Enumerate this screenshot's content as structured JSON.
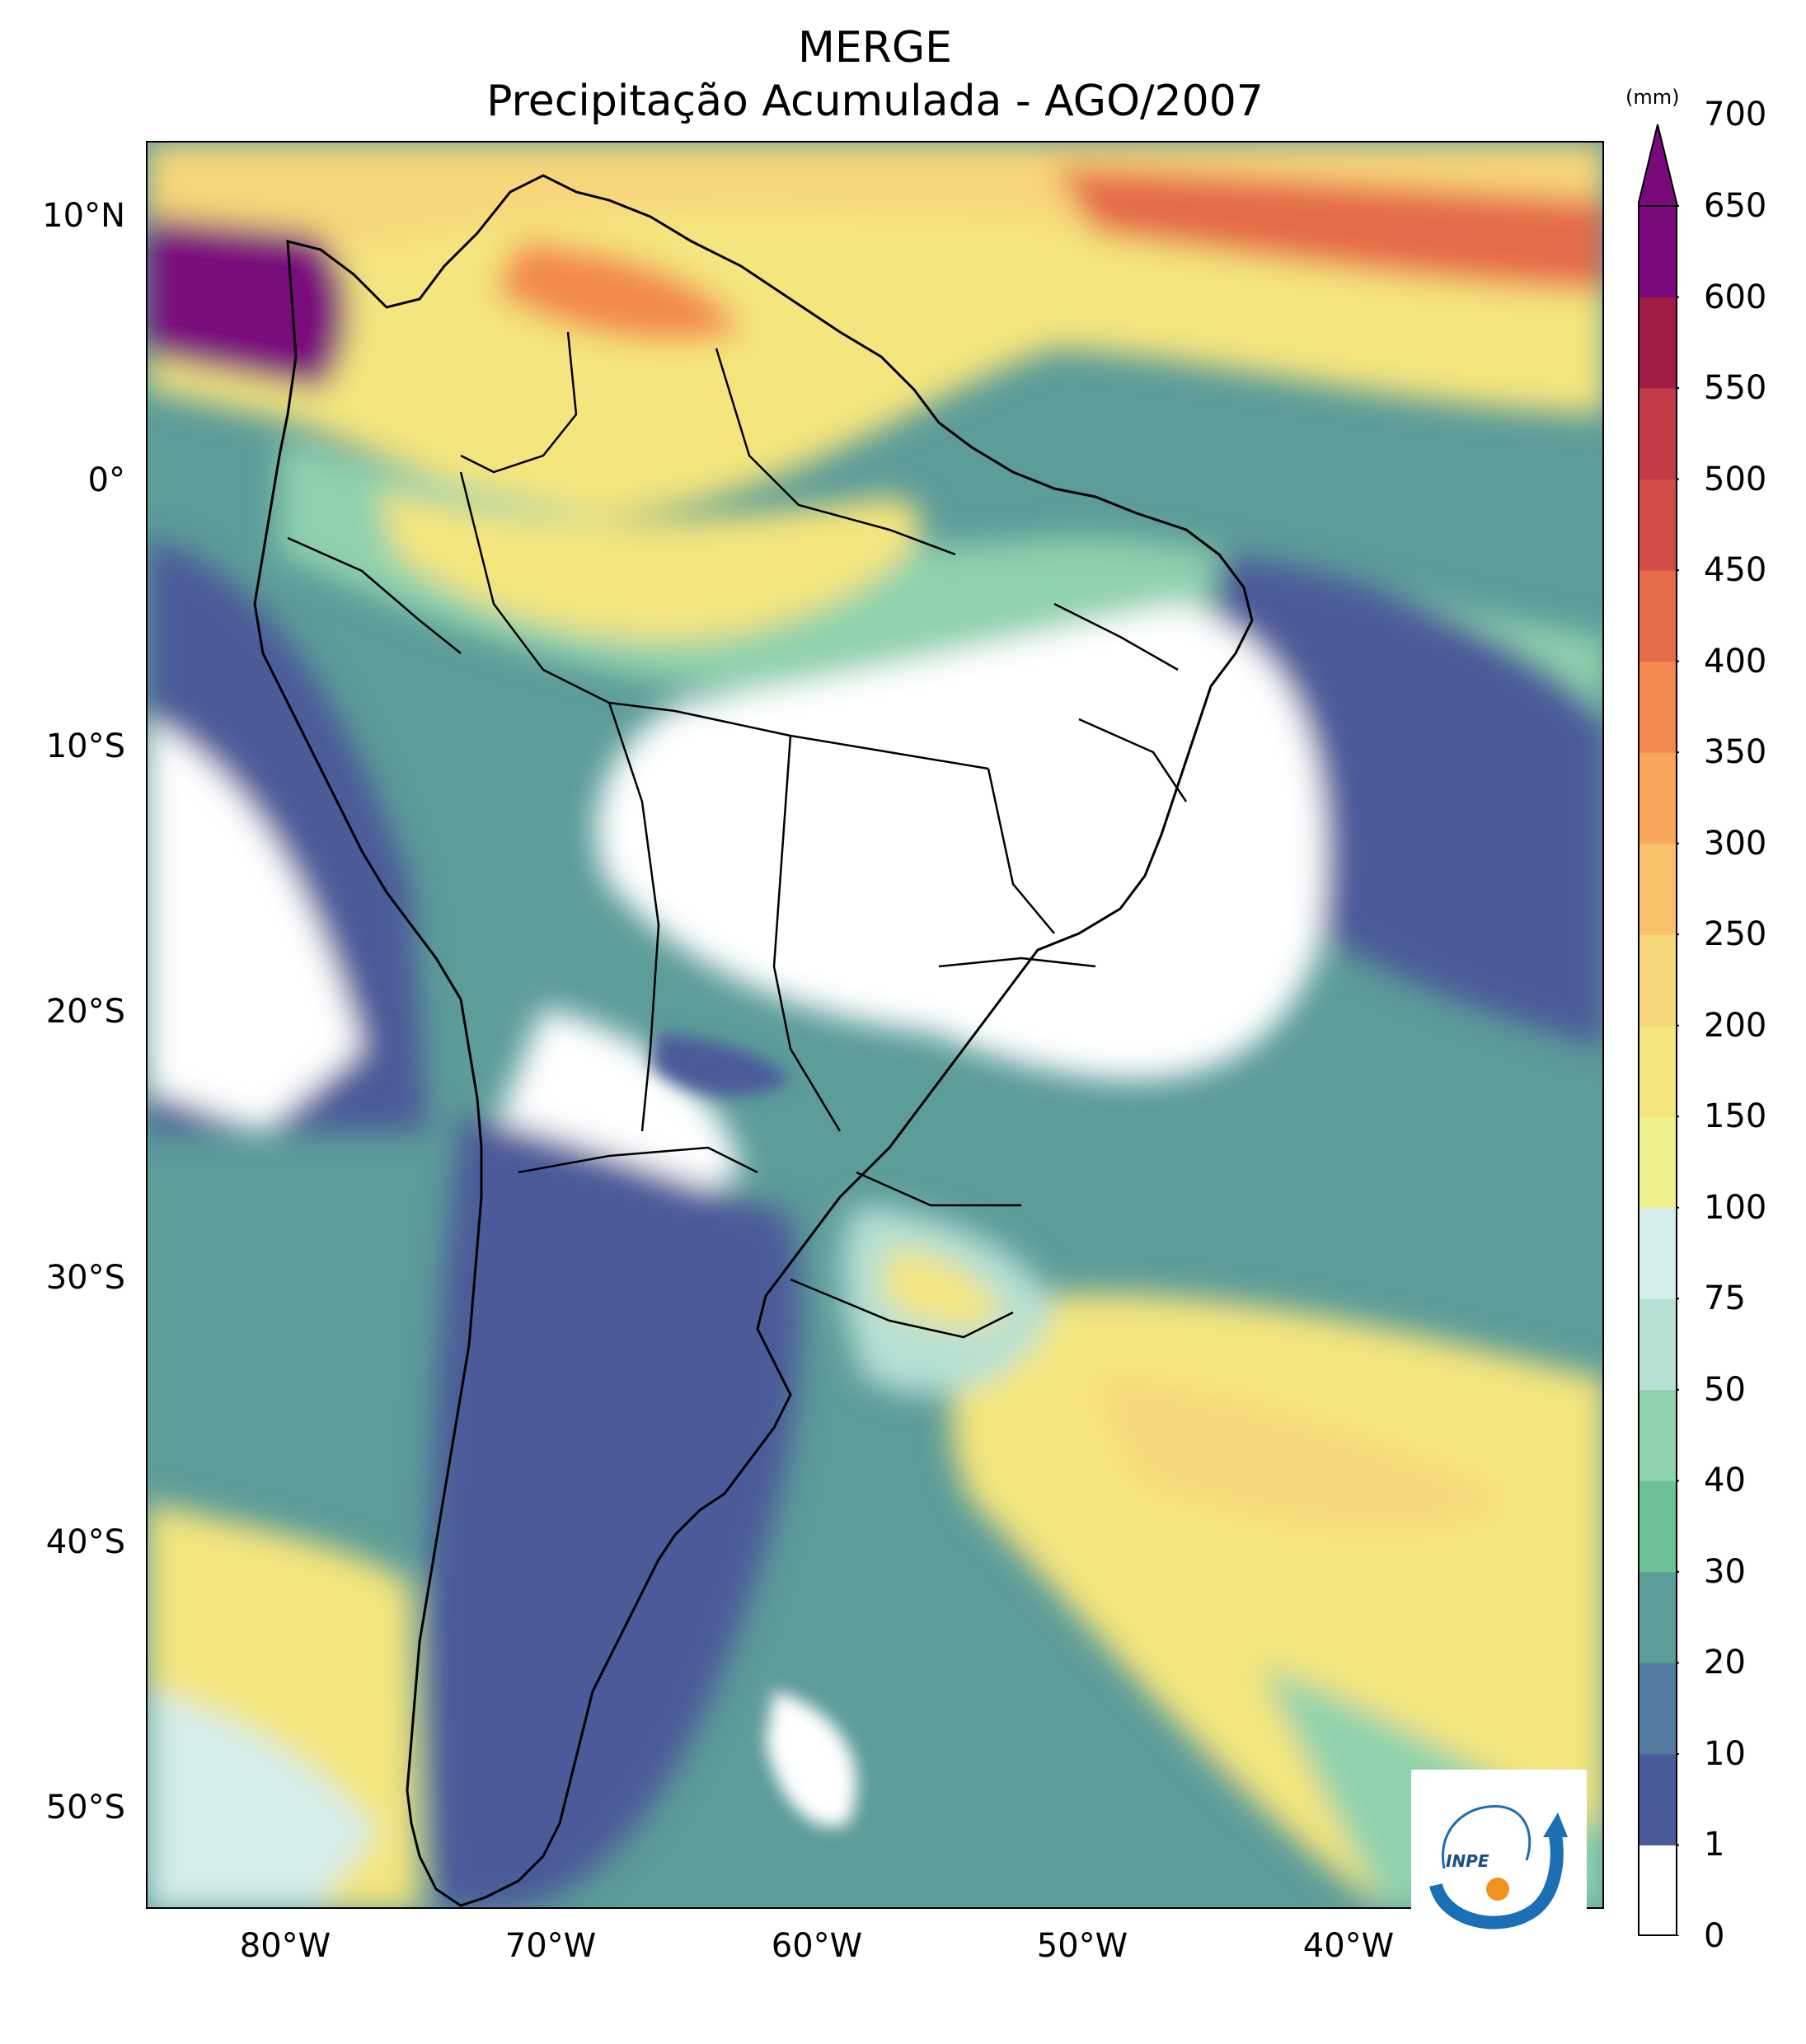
{
  "title_line1": "MERGE",
  "title_line2": "Precipitação Acumulada - AGO/2007",
  "lat_labels": [
    "10°N",
    "0°",
    "10°S",
    "20°S",
    "30°S",
    "40°S",
    "50°S"
  ],
  "lon_labels": [
    "80°W",
    "70°W",
    "60°W",
    "50°W",
    "40°W"
  ],
  "colorbar": {
    "unit": "(mm)",
    "ticks": [
      "0",
      "1",
      "10",
      "20",
      "30",
      "40",
      "50",
      "75",
      "100",
      "150",
      "200",
      "250",
      "300",
      "350",
      "400",
      "450",
      "500",
      "550",
      "600",
      "650",
      "700"
    ],
    "colors": [
      "#ffffff",
      "#4b5a99",
      "#527a9e",
      "#5c9c99",
      "#6cc196",
      "#8fd1ad",
      "#b6e0d4",
      "#d4ecea",
      "#eef08c",
      "#f4e57e",
      "#f8d67a",
      "#f9c26a",
      "#f8a65c",
      "#f3884e",
      "#e56a48",
      "#d24d46",
      "#c23b47",
      "#a01d46",
      "#7a0a7c"
    ],
    "extend_color": "#7a0a7c"
  },
  "logo": {
    "text": "INPE",
    "colors": {
      "arc": "#1a6fb5",
      "sun": "#f0921c"
    }
  }
}
